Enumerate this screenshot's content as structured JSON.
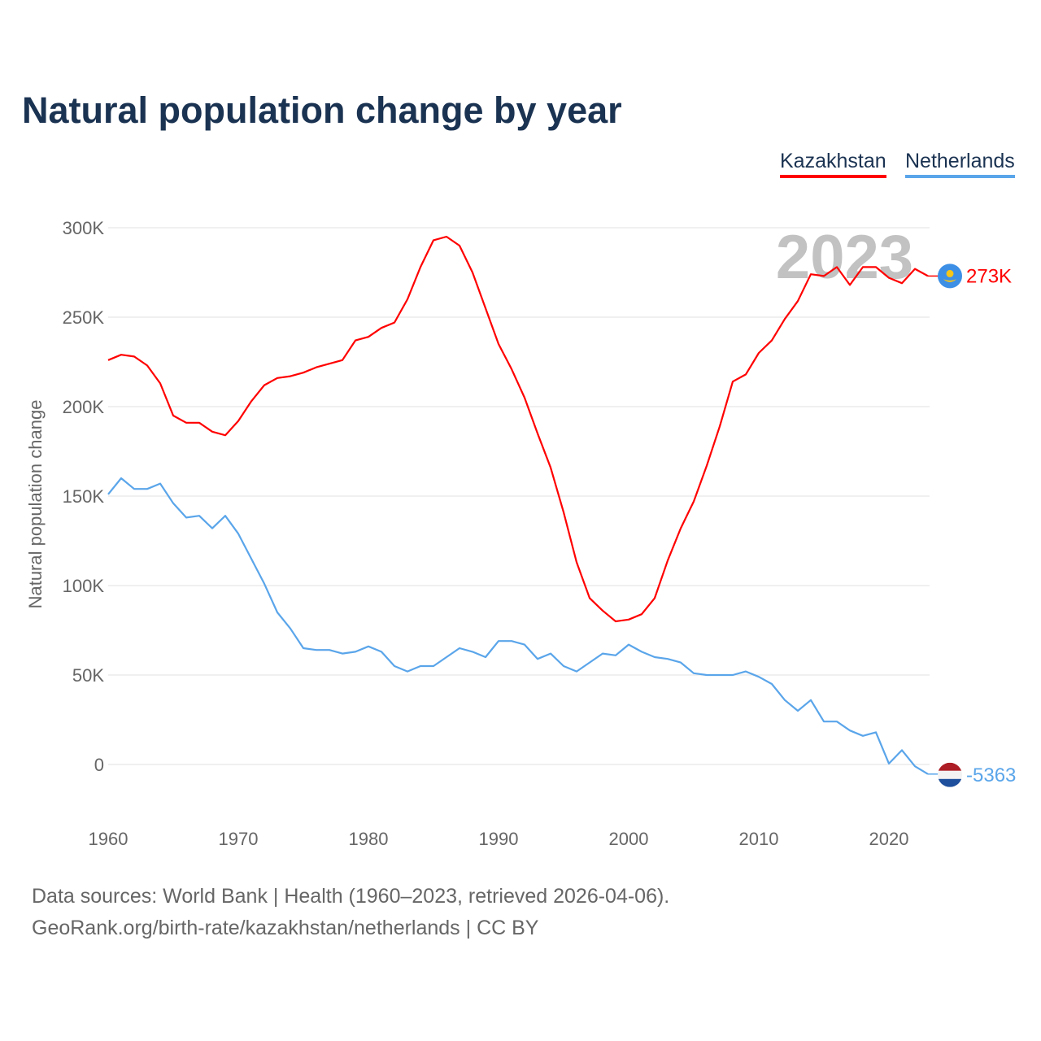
{
  "chart_data": {
    "type": "line",
    "title": "Natural population change by year",
    "xlabel": "",
    "ylabel": "Natural population change",
    "xlim": [
      1960,
      2023
    ],
    "ylim": [
      -20000,
      310000
    ],
    "grid": true,
    "legend_placement": "top-right",
    "x_ticks": [
      1960,
      1970,
      1980,
      1990,
      2000,
      2010,
      2020
    ],
    "x_tick_labels": [
      "1960",
      "1970",
      "1980",
      "1990",
      "2000",
      "2010",
      "2020"
    ],
    "y_ticks": [
      0,
      50000,
      100000,
      150000,
      200000,
      250000,
      300000
    ],
    "y_tick_labels": [
      "0",
      "50K",
      "100K",
      "150K",
      "200K",
      "250K",
      "300K"
    ],
    "year_watermark": "2023",
    "x_start": 1960,
    "series": [
      {
        "name": "Kazakhstan",
        "color": "#ff0000",
        "end_label": "273K",
        "flag": "kazakhstan-flag",
        "values": [
          226000,
          229000,
          228000,
          223000,
          213000,
          195000,
          191000,
          191000,
          186000,
          184000,
          192000,
          203000,
          212000,
          216000,
          217000,
          219000,
          222000,
          224000,
          226000,
          237000,
          239000,
          244000,
          247000,
          260000,
          278000,
          293000,
          295000,
          290000,
          275000,
          255000,
          235000,
          221000,
          205000,
          185000,
          166000,
          141000,
          113000,
          93000,
          86000,
          80000,
          81000,
          84000,
          93000,
          114000,
          132000,
          147000,
          167000,
          189000,
          214000,
          218000,
          230000,
          237000,
          249000,
          259000,
          274000,
          273000,
          278000,
          268000,
          278000,
          278000,
          272000,
          269000,
          277000,
          273000
        ]
      },
      {
        "name": "Netherlands",
        "color": "#5aa5ea",
        "end_label": "-5363",
        "flag": "netherlands-flag",
        "values": [
          151000,
          160000,
          154000,
          154000,
          157000,
          146000,
          138000,
          139000,
          132000,
          139000,
          129000,
          115000,
          101000,
          85000,
          76000,
          65000,
          64000,
          64000,
          62000,
          63000,
          66000,
          63000,
          55000,
          52000,
          55000,
          55000,
          60000,
          65000,
          63000,
          60000,
          69000,
          69000,
          67000,
          59000,
          62000,
          55000,
          52000,
          57000,
          62000,
          61000,
          67000,
          63000,
          60000,
          59000,
          57000,
          51000,
          50000,
          50000,
          50000,
          52000,
          49000,
          45000,
          36000,
          30000,
          36000,
          24000,
          24000,
          19000,
          16000,
          18000,
          500,
          8000,
          -1000,
          -5363
        ]
      }
    ]
  },
  "footer": {
    "line1": "Data sources: World Bank | Health (1960–2023, retrieved 2026-04-06).",
    "line2": "GeoRank.org/birth-rate/kazakhstan/netherlands | CC BY"
  }
}
